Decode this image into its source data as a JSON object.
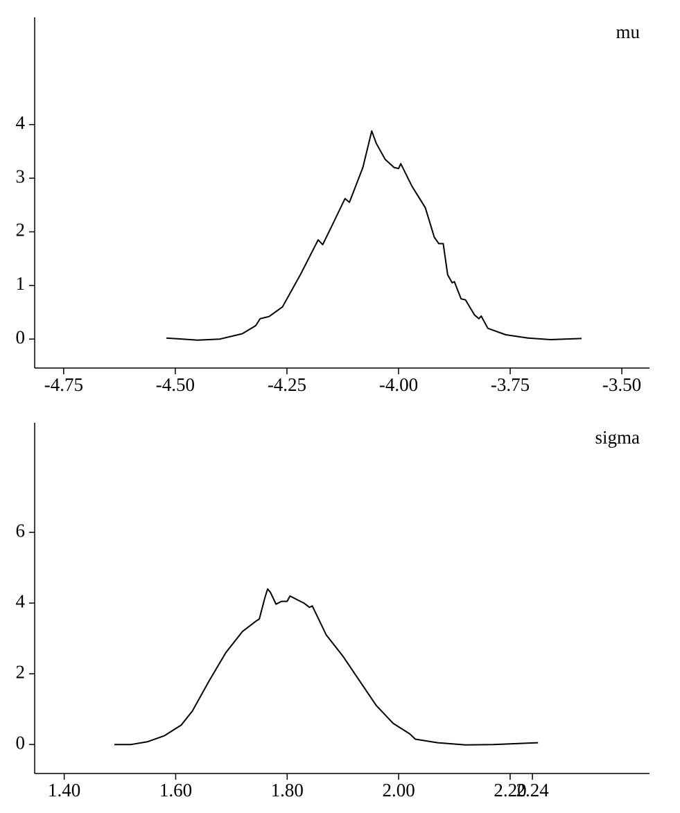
{
  "chart_data": [
    {
      "type": "line",
      "annotation": "mu",
      "color": "#000000",
      "x": [
        -4.52,
        -4.45,
        -4.4,
        -4.35,
        -4.32,
        -4.31,
        -4.29,
        -4.26,
        -4.22,
        -4.18,
        -4.17,
        -4.15,
        -4.12,
        -4.11,
        -4.08,
        -4.06,
        -4.05,
        -4.03,
        -4.01,
        -4.0,
        -3.995,
        -3.97,
        -3.94,
        -3.92,
        -3.91,
        -3.9,
        -3.89,
        -3.88,
        -3.875,
        -3.86,
        -3.85,
        -3.83,
        -3.82,
        -3.815,
        -3.8,
        -3.76,
        -3.71,
        -3.66,
        -3.59
      ],
      "values": [
        0.02,
        -0.02,
        0.0,
        0.1,
        0.25,
        0.38,
        0.42,
        0.6,
        1.2,
        1.85,
        1.76,
        2.1,
        2.62,
        2.55,
        3.2,
        3.88,
        3.65,
        3.35,
        3.2,
        3.18,
        3.27,
        2.85,
        2.45,
        1.9,
        1.78,
        1.78,
        1.2,
        1.05,
        1.07,
        0.75,
        0.73,
        0.45,
        0.38,
        0.43,
        0.2,
        0.08,
        0.02,
        -0.01,
        0.01
      ],
      "xlim": [
        -4.815,
        -3.438
      ],
      "ylim": [
        -0.54,
        6.0
      ],
      "xticks": [
        -4.75,
        {
          "value": -4.5,
          "label": "-4.50"
        },
        -4.25,
        {
          "value": -4.0,
          "label": "-4.00"
        },
        -3.75,
        {
          "value": -3.5,
          "label": "-3.50"
        }
      ],
      "yticks": [
        0,
        1,
        2,
        3,
        4
      ]
    },
    {
      "type": "line",
      "annotation": "sigma",
      "color": "#000000",
      "x": [
        1.49,
        1.52,
        1.55,
        1.58,
        1.61,
        1.63,
        1.66,
        1.69,
        1.72,
        1.745,
        1.75,
        1.76,
        1.765,
        1.77,
        1.78,
        1.79,
        1.8,
        1.805,
        1.82,
        1.83,
        1.84,
        1.845,
        1.87,
        1.9,
        1.93,
        1.96,
        1.99,
        2.02,
        2.03,
        2.07,
        2.12,
        2.17,
        2.25
      ],
      "values": [
        0,
        0.0,
        0.08,
        0.25,
        0.55,
        0.95,
        1.8,
        2.6,
        3.2,
        3.5,
        3.55,
        4.15,
        4.4,
        4.3,
        3.97,
        4.05,
        4.05,
        4.2,
        4.08,
        4.0,
        3.88,
        3.92,
        3.1,
        2.5,
        1.8,
        1.1,
        0.6,
        0.3,
        0.15,
        0.05,
        -0.01,
        0,
        0.05
      ],
      "xlim": [
        1.347,
        2.45
      ],
      "ylim": [
        -0.82,
        9.1
      ],
      "xticks": [
        {
          "value": 1.4,
          "label": "1.40"
        },
        {
          "value": 1.6,
          "label": "1.60"
        },
        {
          "value": 1.8,
          "label": "1.80"
        },
        {
          "value": 2.0,
          "label": "2.00"
        },
        {
          "value": 2.2,
          "label": "2.20"
        },
        2.24
      ],
      "yticks": [
        0,
        2,
        4,
        6
      ]
    }
  ]
}
